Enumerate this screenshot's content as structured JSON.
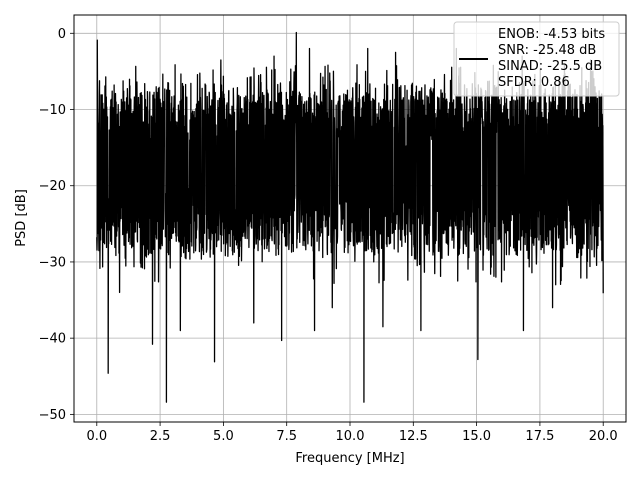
{
  "chart_data": {
    "type": "line",
    "title": "",
    "xlabel": "Frequency [MHz]",
    "ylabel": "PSD [dB]",
    "xlim": [
      -0.9,
      20.9
    ],
    "ylim": [
      -51,
      2.4
    ],
    "xticks": [
      0.0,
      2.5,
      5.0,
      7.5,
      10.0,
      12.5,
      15.0,
      17.5,
      20.0
    ],
    "xtick_labels": [
      "0.0",
      "2.5",
      "5.0",
      "7.5",
      "10.0",
      "12.5",
      "15.0",
      "17.5",
      "20.0"
    ],
    "yticks": [
      0,
      -10,
      -20,
      -30,
      -40,
      -50
    ],
    "ytick_labels": [
      "0",
      "−10",
      "−20",
      "−30",
      "−40",
      "−50"
    ],
    "grid": true,
    "legend": {
      "placement": "top-right",
      "entries": [
        "ENOB: -4.53 bits",
        "SNR: -25.48 dB",
        "SINAD: -25.5 dB",
        "SFDR: 0.86"
      ]
    },
    "series": [
      {
        "color": "#000000",
        "band": {
          "x_start": 0.0,
          "x_end": 20.0,
          "upper_typical": -9,
          "lower_typical": -27,
          "mean": -17.5
        },
        "peaks": [
          {
            "x": 0.02,
            "y": -0.9
          },
          {
            "x": 7.88,
            "y": 0.1
          },
          {
            "x": 4.9,
            "y": -3.5
          },
          {
            "x": 7.0,
            "y": -3.0
          },
          {
            "x": 8.4,
            "y": -2.0
          },
          {
            "x": 10.7,
            "y": -2.0
          },
          {
            "x": 11.8,
            "y": -2.5
          },
          {
            "x": 14.2,
            "y": -2.0
          },
          {
            "x": 16.8,
            "y": -3.0
          },
          {
            "x": 19.5,
            "y": -3.5
          }
        ],
        "dips": [
          {
            "x": 0.45,
            "y": -44.6
          },
          {
            "x": 0.9,
            "y": -34.0
          },
          {
            "x": 2.2,
            "y": -40.8
          },
          {
            "x": 2.75,
            "y": -48.4
          },
          {
            "x": 3.3,
            "y": -39.0
          },
          {
            "x": 4.65,
            "y": -43.1
          },
          {
            "x": 6.2,
            "y": -38.0
          },
          {
            "x": 7.3,
            "y": -40.3
          },
          {
            "x": 8.6,
            "y": -39.0
          },
          {
            "x": 9.3,
            "y": -36.0
          },
          {
            "x": 10.55,
            "y": -48.4
          },
          {
            "x": 11.3,
            "y": -38.5
          },
          {
            "x": 12.8,
            "y": -39.0
          },
          {
            "x": 15.05,
            "y": -42.8
          },
          {
            "x": 16.85,
            "y": -39.0
          },
          {
            "x": 18.0,
            "y": -36.0
          },
          {
            "x": 20.0,
            "y": -34.1
          }
        ]
      }
    ]
  }
}
